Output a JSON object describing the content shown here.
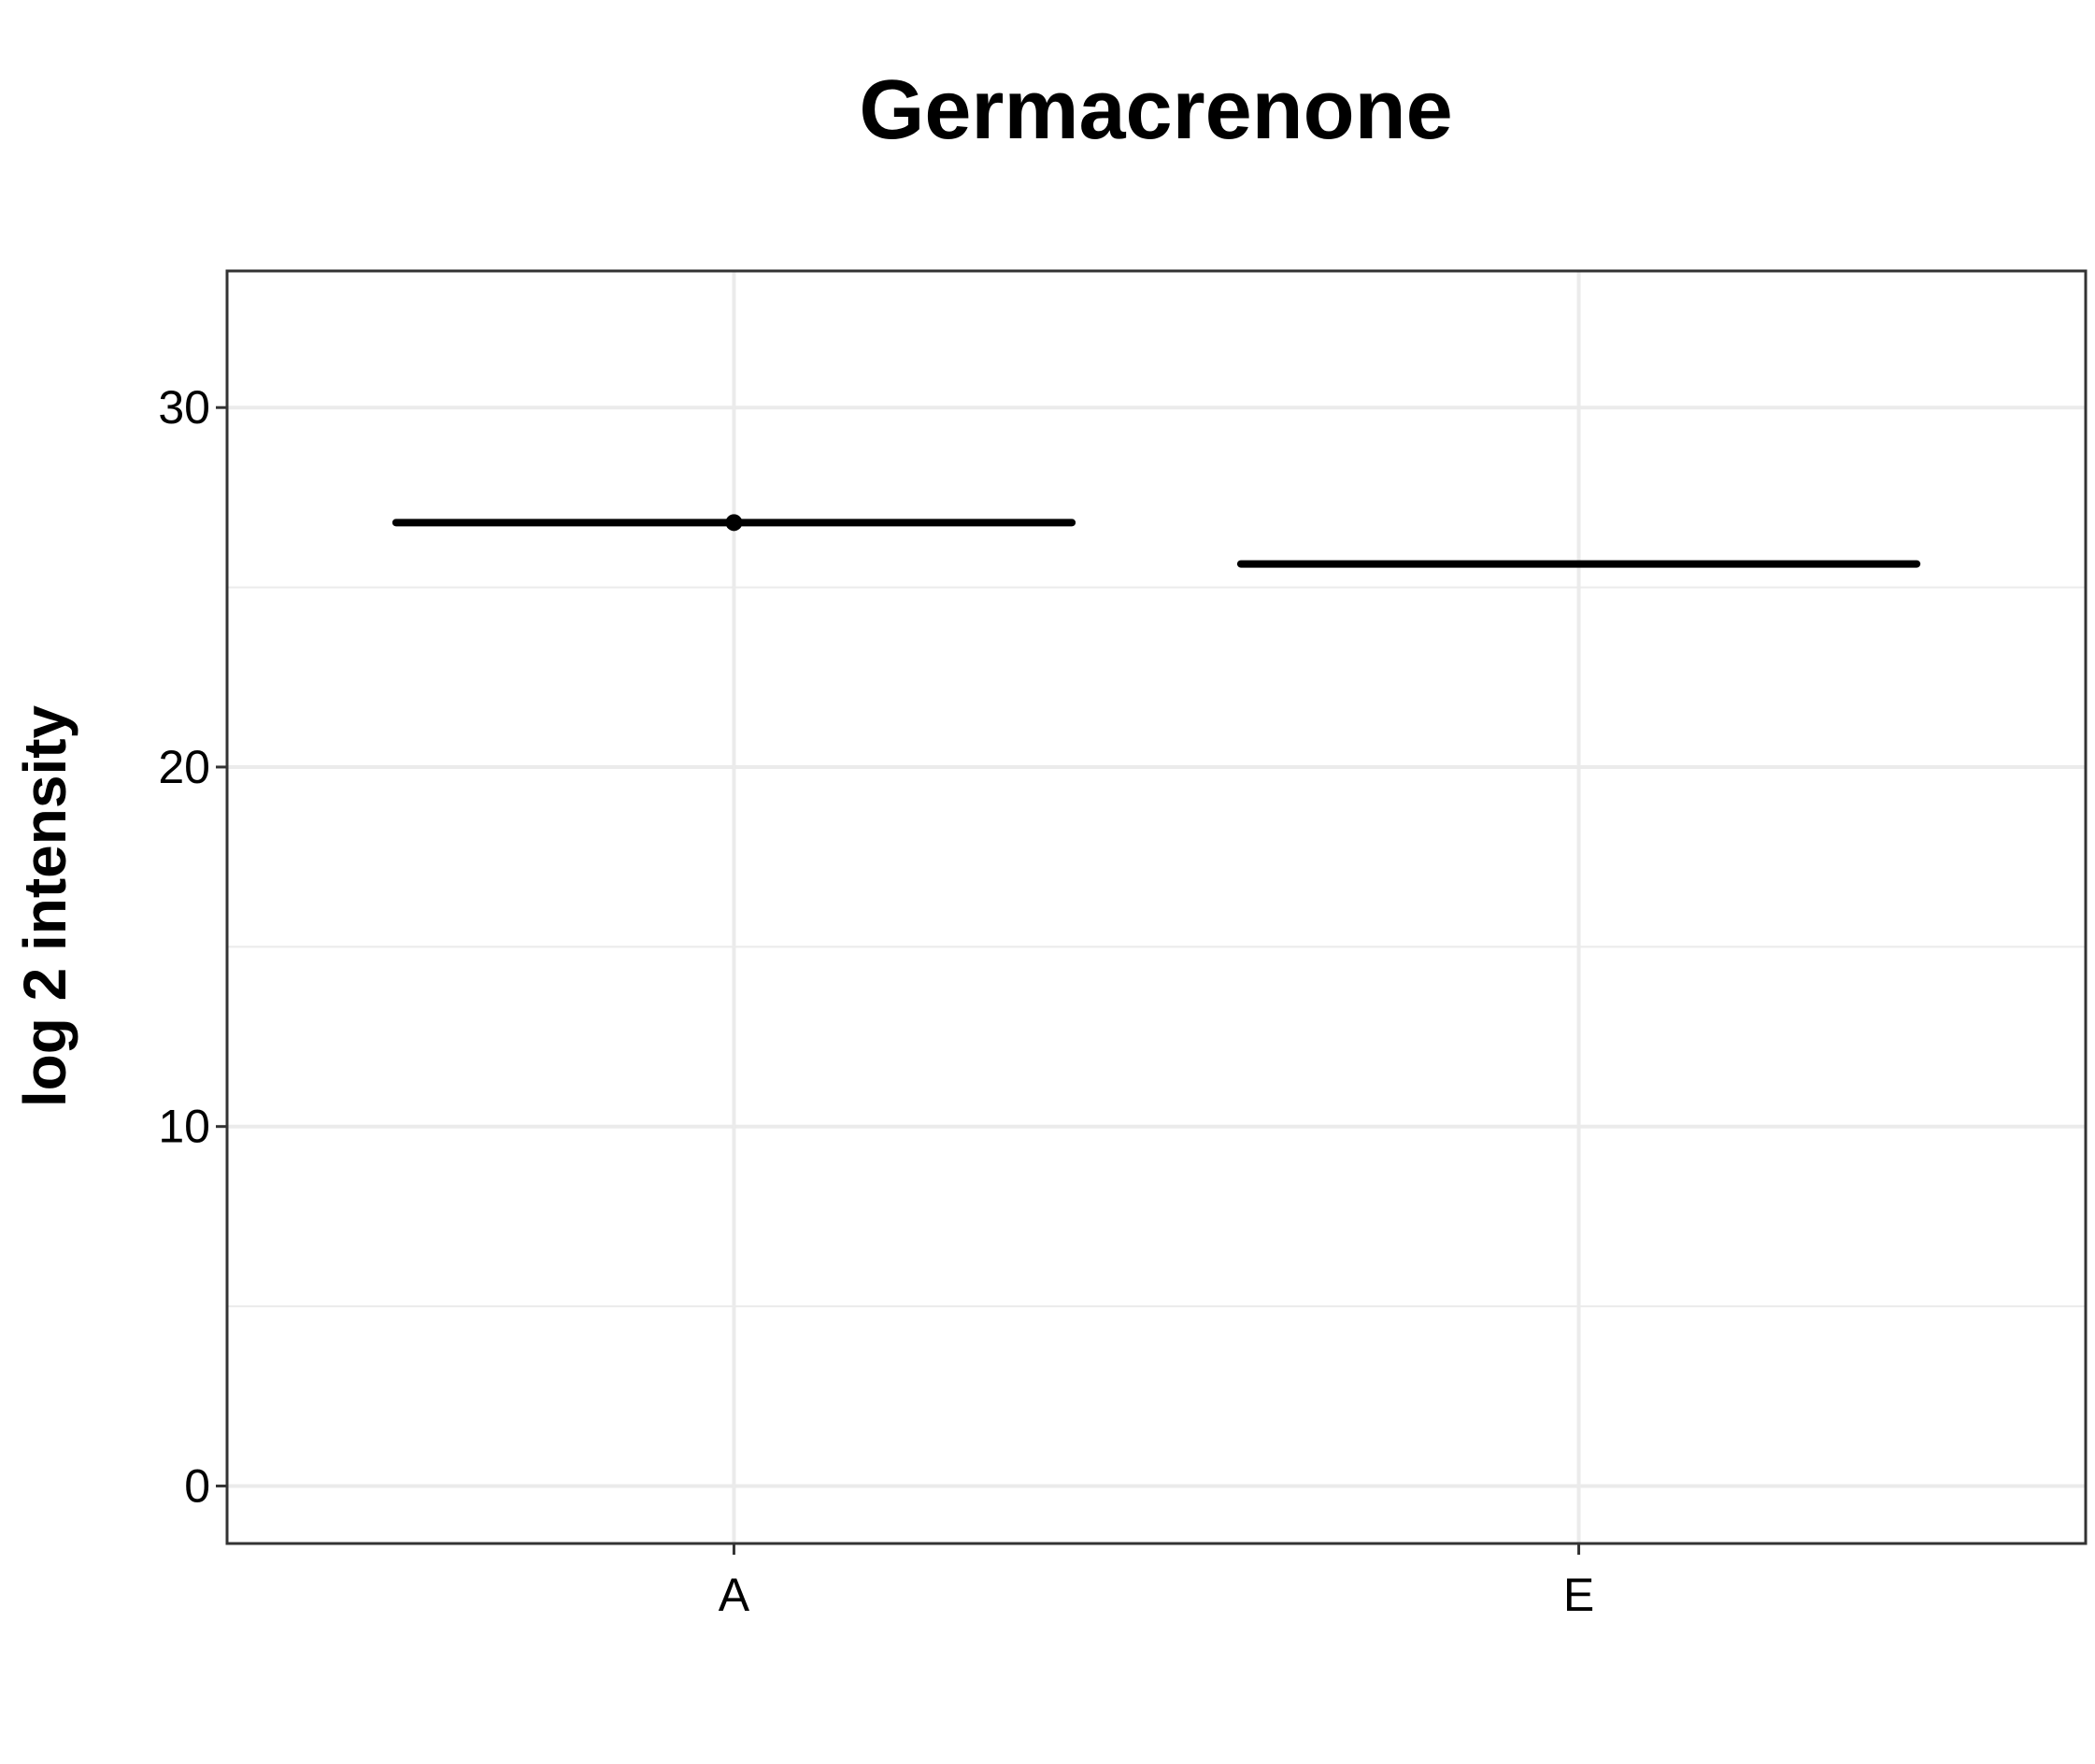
{
  "chart_data": {
    "type": "box",
    "title": "Germacrenone",
    "xlabel": "",
    "ylabel": "log 2 intensity",
    "categories": [
      "A",
      "E"
    ],
    "boxes": [
      {
        "category": "A",
        "min": 26.8,
        "q1": 26.8,
        "median": 26.8,
        "q3": 26.8,
        "max": 26.8,
        "points": [
          26.8
        ]
      },
      {
        "category": "E",
        "min": 25.65,
        "q1": 25.65,
        "median": 25.65,
        "q3": 25.65,
        "max": 25.65,
        "points": []
      }
    ],
    "y_ticks": [
      0,
      10,
      20,
      30
    ],
    "y_tick_labels": [
      "0",
      "10",
      "20",
      "30"
    ],
    "ylim": [
      -1.6,
      33.8
    ],
    "grid": true,
    "legend": "none",
    "colors": {
      "box": "#000000",
      "grid": "#ebebeb",
      "panel_border": "#333333"
    }
  }
}
